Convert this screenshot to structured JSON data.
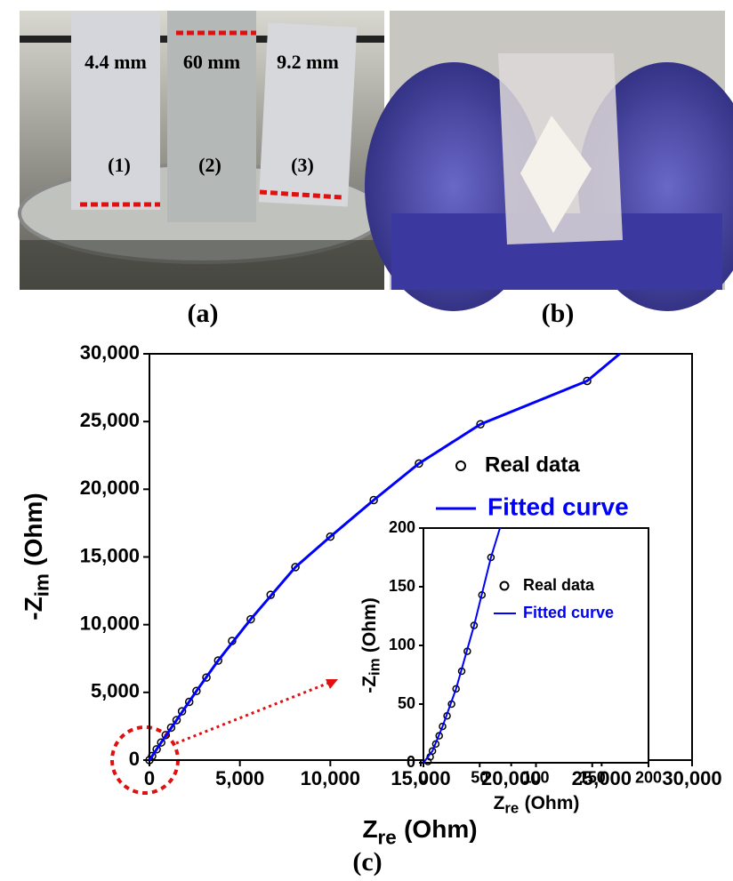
{
  "figure": {
    "a": {
      "caption": "(a)",
      "lengths": [
        "4.4 mm",
        "60 mm",
        "9.2 mm"
      ],
      "strips": [
        "(1)",
        "(2)",
        "(3)"
      ]
    },
    "b": {
      "caption": "(b)"
    },
    "c": {
      "caption": "(c)"
    }
  },
  "chart_data": [
    {
      "type": "scatter",
      "xlabel": [
        "Z",
        "re",
        "(Ohm)"
      ],
      "ylabel": [
        "-Z",
        "im",
        "(Ohm)"
      ],
      "xlim": [
        0,
        30000
      ],
      "ylim": [
        0,
        30000
      ],
      "xticks": [
        0,
        {
          "value": 5000,
          "label": "5,000"
        },
        {
          "value": 10000,
          "label": "10,000"
        },
        {
          "value": 15000,
          "label": "15,000"
        },
        {
          "value": 20000,
          "label": "20,000"
        },
        {
          "value": 25000,
          "label": "25,000"
        },
        {
          "value": 30000,
          "label": "30,000"
        }
      ],
      "yticks": [
        0,
        {
          "value": 5000,
          "label": "5,000"
        },
        {
          "value": 10000,
          "label": "10,000"
        },
        {
          "value": 15000,
          "label": "15,000"
        },
        {
          "value": 20000,
          "label": "20,000"
        },
        {
          "value": 25000,
          "label": "25,000"
        },
        {
          "value": 30000,
          "label": "30,000"
        }
      ],
      "series": [
        {
          "name": "Real data",
          "color": "#000000",
          "marker": "circle",
          "x": [
            0,
            150,
            400,
            650,
            900,
            1200,
            1500,
            1800,
            2200,
            2600,
            3150,
            3800,
            4570,
            5600,
            6700,
            8070,
            10000,
            12400,
            14900,
            18300,
            24200
          ],
          "values": [
            0,
            300,
            800,
            1300,
            1850,
            2400,
            2950,
            3600,
            4300,
            5100,
            6100,
            7350,
            8800,
            10400,
            12200,
            14250,
            16500,
            19200,
            21900,
            24800,
            28000
          ]
        },
        {
          "name": "Fitted curve",
          "color": "#0000ff",
          "marker": "line",
          "x": [
            0,
            650,
            1500,
            2600,
            3800,
            5600,
            8070,
            10000,
            12400,
            14900,
            18300,
            24200,
            26000
          ],
          "values": [
            0,
            1300,
            2950,
            5100,
            7350,
            10400,
            14250,
            16500,
            19200,
            21900,
            24800,
            28000,
            30000
          ]
        }
      ]
    },
    {
      "type": "scatter",
      "xlabel": [
        "Z",
        "re",
        "(Ohm)"
      ],
      "ylabel": [
        "-Z",
        "im",
        "(Ohm)"
      ],
      "xlim": [
        0,
        200
      ],
      "ylim": [
        0,
        200
      ],
      "xticks": [
        0,
        50,
        100,
        150,
        200
      ],
      "yticks": [
        0,
        50,
        100,
        150,
        200
      ],
      "series": [
        {
          "name": "Real data",
          "color": "#000000",
          "marker": "circle",
          "x": [
            4,
            6,
            8,
            11,
            14,
            17,
            21,
            25,
            29,
            34,
            39,
            45,
            52,
            60
          ],
          "values": [
            1,
            5,
            10,
            16,
            23,
            31,
            40,
            50,
            63,
            78,
            95,
            117,
            143,
            175
          ]
        },
        {
          "name": "Fitted curve",
          "color": "#0000ff",
          "marker": "line",
          "x": [
            0,
            8,
            17,
            29,
            45,
            60,
            68
          ],
          "values": [
            0,
            10,
            31,
            63,
            117,
            175,
            200
          ]
        }
      ]
    }
  ]
}
